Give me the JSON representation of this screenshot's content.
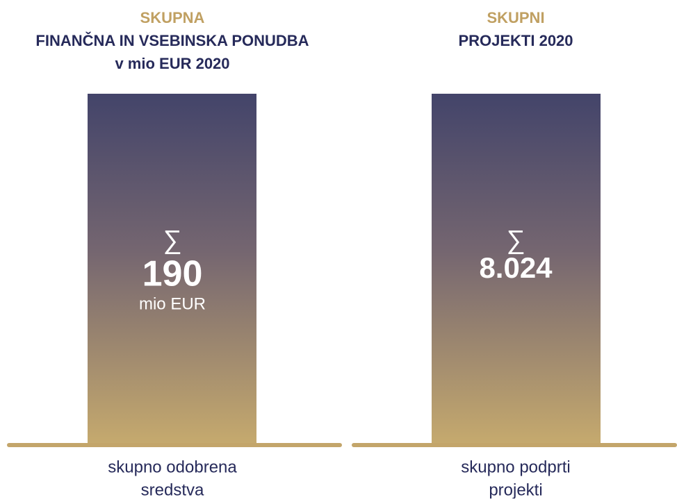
{
  "panels": [
    {
      "title_lines": [
        "SKUPNA",
        "FINANČNA IN VSEBINSKA PONUDBA",
        "v mio EUR 2020"
      ],
      "symbol": "∑",
      "value": "190",
      "unit": "mio EUR",
      "caption_lines": [
        "skupno odobrena",
        "sredstva"
      ]
    },
    {
      "title_lines": [
        "SKUPNI",
        "PROJEKTI 2020"
      ],
      "symbol": "∑",
      "value": "8.024",
      "caption_lines": [
        "skupno podprti",
        "projekti"
      ]
    }
  ]
}
